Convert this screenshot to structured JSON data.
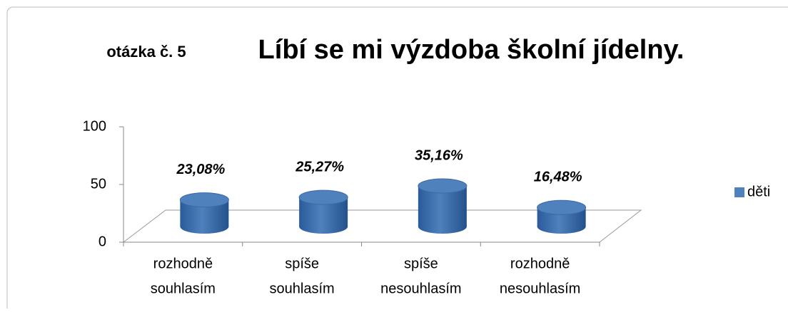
{
  "chart_data": {
    "type": "cylinder",
    "subtitle": "otázka č. 5",
    "title": "Líbí se mi výzdoba školní jídelny.",
    "categories": [
      [
        "rozhodně",
        "souhlasím"
      ],
      [
        "spíše",
        "souhlasím"
      ],
      [
        "spíše",
        "nesouhlasím"
      ],
      [
        "rozhodně",
        "nesouhlasím"
      ]
    ],
    "series": [
      {
        "name": "děti",
        "color": "#4f81bd",
        "values": [
          23.08,
          25.27,
          35.16,
          16.48
        ],
        "value_labels": [
          "23,08%",
          "25,27%",
          "35,16%",
          "16,48%"
        ]
      }
    ],
    "ylim": [
      0,
      100
    ],
    "yticks": [
      0,
      50,
      100
    ],
    "grid": false,
    "legend": "right"
  }
}
